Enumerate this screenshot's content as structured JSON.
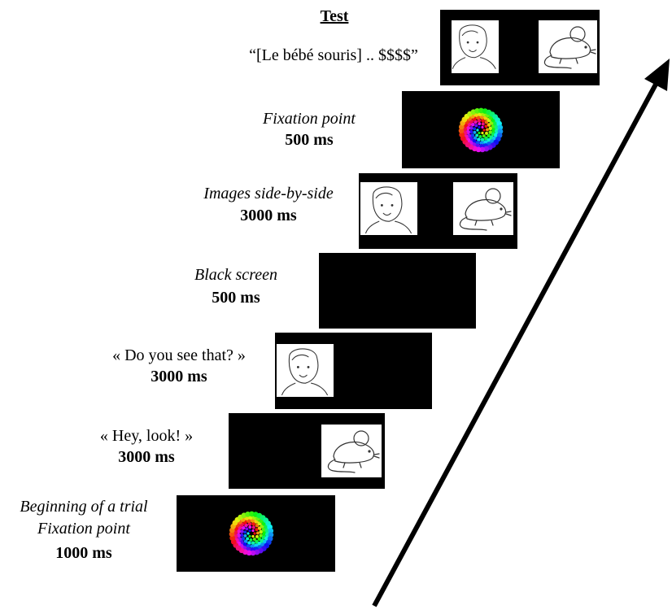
{
  "title": "Test",
  "test_sentence": "“[Le bébé souris] .. $$$$”",
  "steps": [
    {
      "lines": [
        "Fixation point",
        "500 ms"
      ]
    },
    {
      "lines": [
        "Images side-by-side",
        "3000 ms"
      ]
    },
    {
      "lines": [
        "Black screen",
        "500 ms"
      ]
    },
    {
      "lines": [
        "« Do you see that? »",
        "3000 ms"
      ]
    },
    {
      "lines": [
        "« Hey, look! »",
        "3000 ms"
      ]
    },
    {
      "lines": [
        "Beginning of a trial",
        "Fixation point",
        "1000 ms"
      ]
    }
  ]
}
